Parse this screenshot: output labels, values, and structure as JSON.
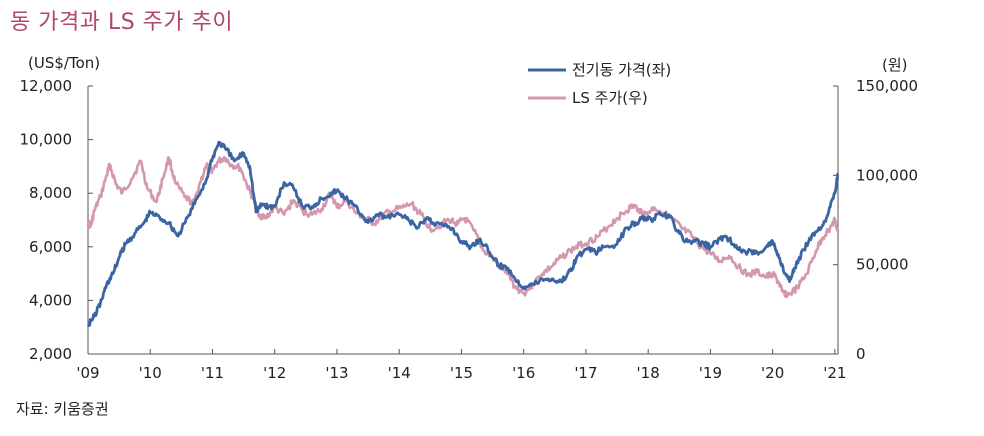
{
  "title": "동 가격과 LS 주가 추이",
  "source": "자료: 키움증권",
  "colors": {
    "copper": "#3b64a2",
    "ls": "#d497ad",
    "title": "#b0466f",
    "axis": "#555555"
  },
  "chart_data": {
    "type": "line",
    "title": "동 가격과 LS 주가 추이",
    "left_axis": {
      "unit": "(US$/Ton)",
      "ylim": [
        2000,
        12000
      ],
      "ticks": [
        "2,000",
        "4,000",
        "6,000",
        "8,000",
        "10,000",
        "12,000"
      ],
      "tick_values": [
        2000,
        4000,
        6000,
        8000,
        10000,
        12000
      ]
    },
    "right_axis": {
      "unit": "(원)",
      "ylim": [
        0,
        150000
      ],
      "ticks": [
        "0",
        "50,000",
        "100,000",
        "150,000"
      ],
      "tick_values": [
        0,
        50000,
        100000,
        150000
      ]
    },
    "x_axis": {
      "xlim": [
        2009.0,
        2021.05
      ],
      "ticks": [
        "'09",
        "'10",
        "'11",
        "'12",
        "'13",
        "'14",
        "'15",
        "'16",
        "'17",
        "'18",
        "'19",
        "'20",
        "'21"
      ],
      "tick_values": [
        2009,
        2010,
        2011,
        2012,
        2013,
        2014,
        2015,
        2016,
        2017,
        2018,
        2019,
        2020,
        2021
      ]
    },
    "legend": {
      "placement": "top-right"
    },
    "series": [
      {
        "name": "전기동 가격(좌)",
        "axis": "left",
        "x": [
          2009.0,
          2009.1,
          2009.2,
          2009.3,
          2009.4,
          2009.5,
          2009.6,
          2009.75,
          2009.9,
          2010.0,
          2010.15,
          2010.3,
          2010.45,
          2010.6,
          2010.75,
          2010.9,
          2011.0,
          2011.1,
          2011.2,
          2011.35,
          2011.5,
          2011.6,
          2011.7,
          2011.8,
          2011.9,
          2012.0,
          2012.15,
          2012.3,
          2012.45,
          2012.6,
          2012.75,
          2012.9,
          2013.0,
          2013.1,
          2013.25,
          2013.4,
          2013.5,
          2013.65,
          2013.8,
          2014.0,
          2014.15,
          2014.3,
          2014.45,
          2014.55,
          2014.7,
          2014.85,
          2015.0,
          2015.15,
          2015.3,
          2015.45,
          2015.6,
          2015.75,
          2015.9,
          2016.0,
          2016.15,
          2016.3,
          2016.45,
          2016.6,
          2016.75,
          2016.85,
          2017.0,
          2017.15,
          2017.3,
          2017.5,
          2017.65,
          2017.8,
          2017.95,
          2018.05,
          2018.2,
          2018.35,
          2018.5,
          2018.6,
          2018.75,
          2018.9,
          2019.0,
          2019.15,
          2019.3,
          2019.45,
          2019.6,
          2019.75,
          2019.9,
          2020.0,
          2020.1,
          2020.2,
          2020.27,
          2020.35,
          2020.5,
          2020.65,
          2020.8,
          2020.9,
          2021.0,
          2021.05
        ],
        "values": [
          3100,
          3400,
          3900,
          4600,
          5000,
          5600,
          6100,
          6500,
          6900,
          7300,
          7100,
          6900,
          6400,
          7100,
          7800,
          8500,
          9300,
          9900,
          9700,
          9200,
          9500,
          9000,
          7300,
          7600,
          7500,
          7500,
          8400,
          8200,
          7500,
          7500,
          7800,
          8000,
          8100,
          7900,
          7600,
          7200,
          6900,
          7200,
          7100,
          7200,
          7000,
          6700,
          7100,
          6900,
          6800,
          6700,
          6200,
          6000,
          6300,
          5800,
          5300,
          5200,
          4700,
          4500,
          4600,
          4800,
          4800,
          4700,
          5100,
          5600,
          5900,
          5800,
          6000,
          6100,
          6700,
          6900,
          7100,
          7000,
          7200,
          7100,
          6500,
          6200,
          6200,
          6100,
          6000,
          6300,
          6300,
          5900,
          5800,
          5800,
          6000,
          6200,
          5600,
          5000,
          4700,
          5200,
          5900,
          6500,
          6800,
          7300,
          8000,
          8700
        ]
      },
      {
        "name": "LS 주가(우)",
        "axis": "right",
        "x": [
          2009.0,
          2009.05,
          2009.1,
          2009.2,
          2009.3,
          2009.35,
          2009.45,
          2009.55,
          2009.7,
          2009.85,
          2009.95,
          2010.1,
          2010.2,
          2010.3,
          2010.4,
          2010.55,
          2010.7,
          2010.8,
          2010.9,
          2011.0,
          2011.1,
          2011.2,
          2011.3,
          2011.45,
          2011.55,
          2011.65,
          2011.75,
          2011.85,
          2012.0,
          2012.15,
          2012.3,
          2012.45,
          2012.6,
          2012.75,
          2012.9,
          2013.0,
          2013.15,
          2013.3,
          2013.45,
          2013.6,
          2013.75,
          2013.9,
          2014.05,
          2014.2,
          2014.35,
          2014.5,
          2014.65,
          2014.8,
          2014.95,
          2015.05,
          2015.2,
          2015.35,
          2015.5,
          2015.65,
          2015.75,
          2015.85,
          2016.0,
          2016.15,
          2016.3,
          2016.45,
          2016.6,
          2016.75,
          2016.9,
          2017.05,
          2017.2,
          2017.35,
          2017.5,
          2017.65,
          2017.75,
          2017.85,
          2017.95,
          2018.1,
          2018.25,
          2018.4,
          2018.55,
          2018.7,
          2018.85,
          2019.0,
          2019.15,
          2019.3,
          2019.45,
          2019.6,
          2019.75,
          2019.9,
          2020.0,
          2020.1,
          2020.15,
          2020.25,
          2020.4,
          2020.55,
          2020.7,
          2020.8,
          2020.95,
          2021.0,
          2021.05
        ],
        "values": [
          73000,
          72000,
          80000,
          88000,
          100000,
          106000,
          95000,
          90000,
          98000,
          108000,
          93000,
          85000,
          98000,
          110000,
          96000,
          88000,
          84000,
          96000,
          105000,
          103000,
          108000,
          110000,
          106000,
          104000,
          95000,
          87000,
          78000,
          76000,
          82000,
          78000,
          86000,
          80000,
          78000,
          81000,
          90000,
          82000,
          86000,
          79000,
          76000,
          73000,
          78000,
          80000,
          82000,
          84000,
          78000,
          70000,
          72000,
          75000,
          73000,
          76000,
          69000,
          58000,
          54000,
          48000,
          45000,
          38000,
          34000,
          39000,
          45000,
          49000,
          54000,
          58000,
          61000,
          63000,
          66000,
          71000,
          76000,
          80000,
          83000,
          81000,
          78000,
          82000,
          79000,
          75000,
          70000,
          66000,
          60000,
          56000,
          52000,
          55000,
          49000,
          44000,
          46000,
          43000,
          45000,
          40000,
          35000,
          33000,
          37000,
          45000,
          58000,
          65000,
          72000,
          75000,
          68000
        ]
      }
    ]
  }
}
